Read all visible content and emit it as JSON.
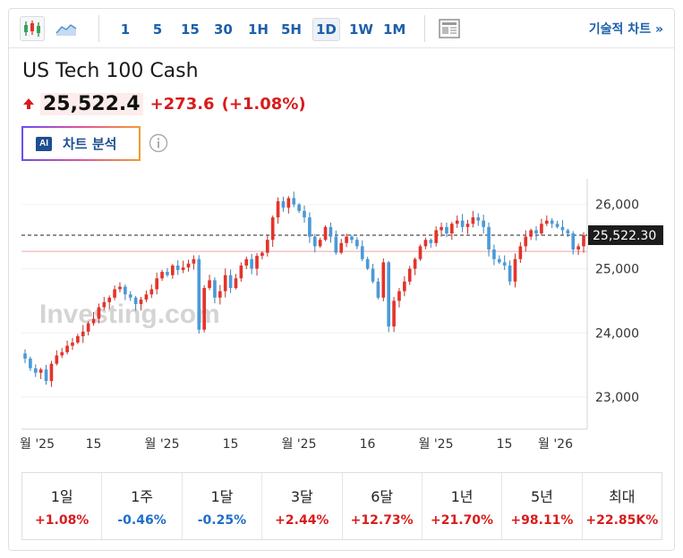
{
  "toolbar": {
    "chart_types": [
      {
        "icon": "candlestick-icon",
        "active": true
      },
      {
        "icon": "area-chart-icon",
        "active": false
      }
    ],
    "intervals": [
      "1",
      "5",
      "15",
      "30",
      "1H",
      "5H",
      "1D",
      "1W",
      "1M"
    ],
    "active_interval": "1D",
    "layout_icon": "news-layout-icon",
    "technical_label": "기술적 차트 »"
  },
  "header": {
    "title": "US Tech 100 Cash",
    "price": "25,522.4",
    "change": "+273.6",
    "change_pct": "(+1.08%)",
    "direction_icon": "arrow-up-icon",
    "ai_badge": "AI",
    "ai_button_label": "차트 분석",
    "info_icon": "info-icon"
  },
  "colors": {
    "up": "#e5332a",
    "down": "#4a9ad8",
    "accent": "#1d5fab",
    "negative_text": "#1d6fc9",
    "positive_text": "#d91c1c",
    "current_price_tag": "#1c1c1c"
  },
  "chart_data": {
    "type": "candlestick",
    "y_ticks": [
      "26,000",
      "25,000",
      "24,000",
      "23,000"
    ],
    "ylim": [
      22500,
      26400
    ],
    "x_tick_labels": [
      "월 '25",
      "15",
      "월 '25",
      "15",
      "월 '25",
      "16",
      "월 '25",
      "15",
      "월 '26"
    ],
    "current_price_label": "25,522.30",
    "current_price": 25522.3,
    "reference_line": 25270,
    "watermark": "Investing.com",
    "closes": [
      23600,
      23450,
      23380,
      23430,
      23250,
      23520,
      23650,
      23700,
      23800,
      23850,
      23950,
      24020,
      24150,
      24220,
      24400,
      24480,
      24550,
      24680,
      24720,
      24600,
      24550,
      24450,
      24520,
      24600,
      24680,
      24850,
      24950,
      24900,
      25050,
      24980,
      25020,
      25080,
      25150,
      24050,
      24700,
      24820,
      24550,
      24650,
      24900,
      24700,
      24850,
      25050,
      25150,
      25000,
      25200,
      25250,
      25450,
      25800,
      26050,
      25950,
      26100,
      26000,
      25900,
      25800,
      25500,
      25350,
      25450,
      25650,
      25500,
      25250,
      25400,
      25500,
      25450,
      25350,
      25150,
      25000,
      24800,
      24550,
      25100,
      24100,
      24500,
      24650,
      24800,
      25000,
      25150,
      25350,
      25450,
      25400,
      25600,
      25650,
      25550,
      25700,
      25750,
      25650,
      25700,
      25800,
      25750,
      25650,
      25300,
      25150,
      25100,
      25050,
      24800,
      25150,
      25350,
      25500,
      25600,
      25550,
      25700,
      25750,
      25700,
      25650,
      25600,
      25550,
      25300,
      25350,
      25522
    ]
  },
  "periods": [
    {
      "label": "1일",
      "value": "+1.08%",
      "sign": "up"
    },
    {
      "label": "1주",
      "value": "-0.46%",
      "sign": "down"
    },
    {
      "label": "1달",
      "value": "-0.25%",
      "sign": "down"
    },
    {
      "label": "3달",
      "value": "+2.44%",
      "sign": "up"
    },
    {
      "label": "6달",
      "value": "+12.73%",
      "sign": "up"
    },
    {
      "label": "1년",
      "value": "+21.70%",
      "sign": "up"
    },
    {
      "label": "5년",
      "value": "+98.11%",
      "sign": "up"
    },
    {
      "label": "최대",
      "value": "+22.85K%",
      "sign": "up"
    }
  ]
}
